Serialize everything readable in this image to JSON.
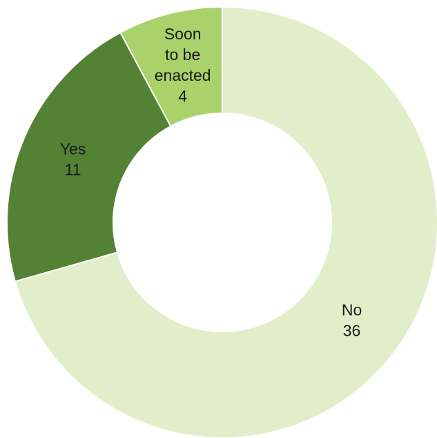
{
  "chart_data": {
    "type": "pie",
    "donut": true,
    "title": "",
    "legend": "none",
    "slices": [
      {
        "label_lines": [
          "No"
        ],
        "value": 36,
        "value_text": "36",
        "color": "#e2eec9"
      },
      {
        "label_lines": [
          "Yes"
        ],
        "value": 11,
        "value_text": "11",
        "color": "#548235"
      },
      {
        "label_lines": [
          "Soon",
          "to be",
          "enacted"
        ],
        "value": 4,
        "value_text": "4",
        "color": "#a9d26a"
      }
    ]
  }
}
